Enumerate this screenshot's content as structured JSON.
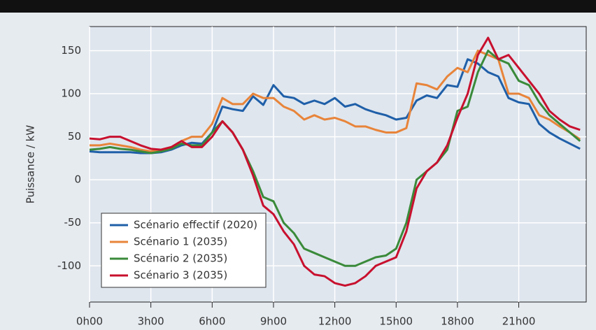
{
  "chart_data": {
    "type": "line",
    "ylabel": "Puissance / kW",
    "x": [
      0,
      0.5,
      1,
      1.5,
      2,
      2.5,
      3,
      3.5,
      4,
      4.5,
      5,
      5.5,
      6,
      6.5,
      7,
      7.5,
      8,
      8.5,
      9,
      9.5,
      10,
      10.5,
      11,
      11.5,
      12,
      12.5,
      13,
      13.5,
      14,
      14.5,
      15,
      15.5,
      16,
      16.5,
      17,
      17.5,
      18,
      18.5,
      19,
      19.5,
      20,
      20.5,
      21,
      21.5,
      22,
      22.5,
      23,
      23.5,
      24
    ],
    "series": [
      {
        "name": "Scénario effectif (2020)",
        "color": "#1f5fa8",
        "values": [
          33,
          32,
          32,
          32,
          32,
          31,
          31,
          32,
          35,
          40,
          43,
          42,
          55,
          85,
          82,
          80,
          97,
          87,
          110,
          97,
          95,
          88,
          92,
          88,
          95,
          85,
          88,
          82,
          78,
          75,
          70,
          72,
          92,
          98,
          95,
          110,
          108,
          140,
          135,
          125,
          120,
          95,
          90,
          88,
          65,
          55,
          48,
          42,
          36
        ]
      },
      {
        "name": "Scénario 1 (2035)",
        "color": "#e8843a",
        "values": [
          40,
          40,
          42,
          40,
          38,
          35,
          33,
          35,
          38,
          45,
          50,
          50,
          65,
          95,
          88,
          88,
          100,
          95,
          95,
          85,
          80,
          70,
          75,
          70,
          72,
          68,
          62,
          62,
          58,
          55,
          55,
          60,
          112,
          110,
          105,
          120,
          130,
          125,
          150,
          145,
          140,
          100,
          100,
          95,
          75,
          70,
          62,
          55,
          47
        ]
      },
      {
        "name": "Scénario 2 (2035)",
        "color": "#3a8a3a",
        "values": [
          35,
          36,
          38,
          36,
          35,
          33,
          31,
          33,
          36,
          42,
          40,
          40,
          55,
          68,
          55,
          35,
          10,
          -20,
          -25,
          -50,
          -62,
          -80,
          -85,
          -90,
          -95,
          -100,
          -100,
          -95,
          -90,
          -88,
          -80,
          -50,
          0,
          10,
          20,
          35,
          80,
          85,
          125,
          150,
          140,
          135,
          115,
          110,
          90,
          75,
          65,
          55,
          45
        ]
      },
      {
        "name": "Scénario 3 (2035)",
        "color": "#c8102e",
        "values": [
          48,
          47,
          50,
          50,
          45,
          40,
          36,
          35,
          38,
          45,
          38,
          38,
          50,
          68,
          55,
          35,
          5,
          -30,
          -40,
          -60,
          -75,
          -100,
          -110,
          -112,
          -120,
          -123,
          -120,
          -112,
          -100,
          -95,
          -90,
          -60,
          -10,
          10,
          20,
          40,
          72,
          100,
          145,
          165,
          140,
          145,
          130,
          115,
          100,
          80,
          70,
          62,
          58
        ]
      }
    ],
    "xlim": [
      0,
      24.3
    ],
    "xticks": [
      {
        "value": 0,
        "label": "0h00"
      },
      {
        "value": 3,
        "label": "3h00"
      },
      {
        "value": 6,
        "label": "6h00"
      },
      {
        "value": 9,
        "label": "9h00"
      },
      {
        "value": 12,
        "label": "12h00"
      },
      {
        "value": 15,
        "label": "15h00"
      },
      {
        "value": 18,
        "label": "18h00"
      },
      {
        "value": 21,
        "label": "21h00"
      }
    ],
    "ylim": [
      -142,
      178
    ],
    "yticks": [
      -100,
      -50,
      0,
      50,
      100,
      150
    ],
    "grid": true,
    "legend": "lower left"
  }
}
